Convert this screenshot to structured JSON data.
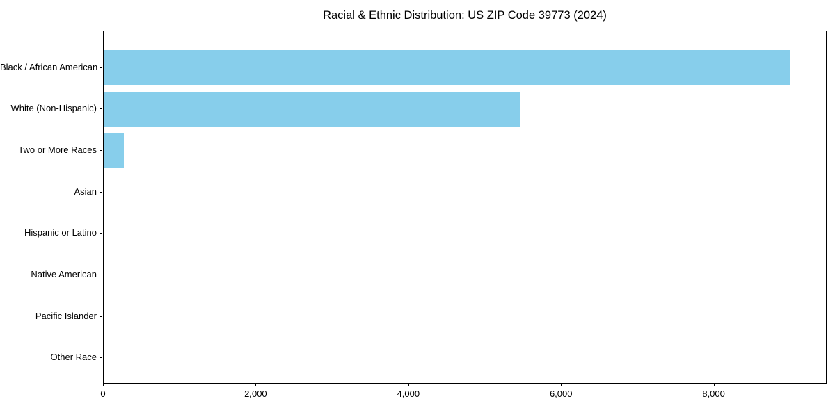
{
  "title": "Racial & Ethnic Distribution: US ZIP Code 39773 (2024)",
  "chart_data": {
    "type": "bar",
    "orientation": "horizontal",
    "title": "Racial & Ethnic Distribution: US ZIP Code 39773 (2024)",
    "categories": [
      "Black / African American",
      "White (Non-Hispanic)",
      "Two or More Races",
      "Asian",
      "Hispanic or Latino",
      "Native American",
      "Pacific Islander",
      "Other Race"
    ],
    "values": [
      9000,
      5450,
      260,
      10,
      12,
      0,
      0,
      0
    ],
    "xlabel": "",
    "ylabel": "",
    "xlim": [
      0,
      9480
    ],
    "x_ticks": [
      0,
      2000,
      4000,
      6000,
      8000
    ],
    "x_tick_labels": [
      "0",
      "2,000",
      "4,000",
      "6,000",
      "8,000"
    ],
    "bar_color": "#87CEEB",
    "background_color": "#ffffff",
    "spine_color": "#000000",
    "grid": false,
    "legend_position": "none"
  }
}
